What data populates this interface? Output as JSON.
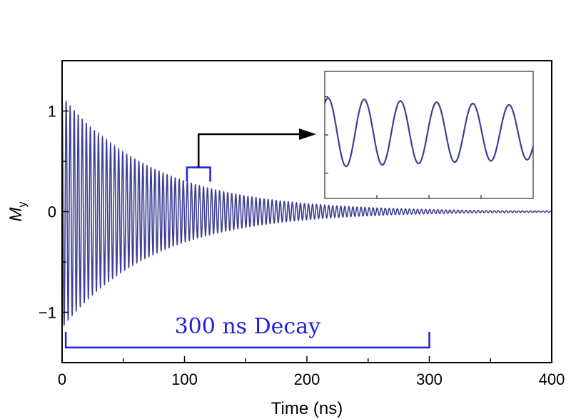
{
  "chart_data": {
    "type": "line",
    "title": "",
    "xlabel": "Time (ns)",
    "ylabel_main": "M",
    "ylabel_sub": "y",
    "xlim": [
      0,
      400
    ],
    "ylim": [
      -1.5,
      1.5
    ],
    "x_ticks": [
      0,
      100,
      200,
      300,
      400
    ],
    "x_tick_labels": [
      "0",
      "100",
      "200",
      "300",
      "400"
    ],
    "y_ticks": [
      -1,
      0,
      1
    ],
    "y_tick_labels": [
      "−1",
      "0",
      "1"
    ],
    "grid": false,
    "series": [
      {
        "model": "damped-cosine",
        "color": "#3f3f94",
        "amplitude": 1.15,
        "period_ns": 3.3,
        "phase": 0,
        "decay_time_ns": 75,
        "x_start": 0,
        "x_end": 400
      }
    ],
    "annotations": {
      "decay_label": "300 ns Decay",
      "decay_bracket": {
        "x_start": 3,
        "x_end": 300,
        "y": -1.35,
        "color": "#1f1fe0"
      },
      "zoom_bracket": {
        "x_start": 102,
        "x_end": 121,
        "y": 0.44,
        "color": "#1f1fe0"
      },
      "arrow_color": "#000000"
    },
    "inset": {
      "x_range": [
        102,
        121
      ],
      "y_range": [
        -0.56,
        0.52
      ],
      "line_color": "#3f3f94",
      "bottom_tick_fracs": [
        0.25,
        0.5,
        0.75
      ],
      "left_tick_fracs": [
        0.2,
        0.5,
        0.8
      ]
    }
  }
}
